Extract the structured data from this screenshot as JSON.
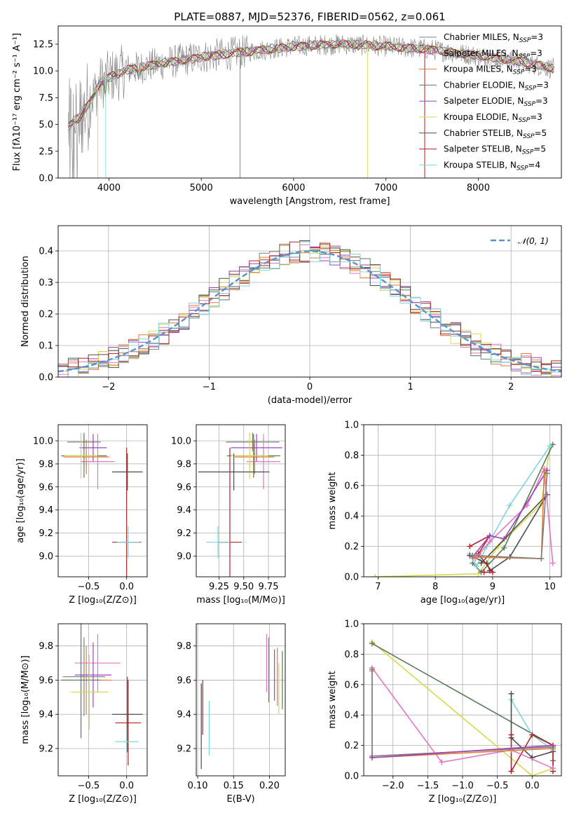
{
  "colors": {
    "Chabrier MILES": "#7f7f7f",
    "Salpeter MILES": "#e377c2",
    "Kroupa MILES": "#e07b39",
    "Chabrier ELODIE": "#5a7a5a",
    "Salpeter ELODIE": "#9c44b8",
    "Kroupa ELODIE": "#d7d94a",
    "Chabrier STELIB": "#4d4d4d",
    "Salpeter STELIB": "#b22222",
    "Kroupa STELIB": "#7fd6dc",
    "data": "#808080",
    "gauss": "#5b8fd6"
  },
  "chart_data": [
    {
      "id": "spectrum",
      "type": "line",
      "title": "PLATE=0887, MJD=52376, FIBERID=0562, z=0.061",
      "xlabel": "wavelength [Angstrom, rest frame]",
      "ylabel": "Flux [fλ10⁻¹⁷ erg cm⁻² s⁻¹ A⁻¹]",
      "xlim": [
        3450,
        8900
      ],
      "ylim": [
        0,
        14.2
      ],
      "xticks": [
        "4000",
        "5000",
        "6000",
        "7000",
        "8000"
      ],
      "yticks": [
        "0.0",
        "2.5",
        "5.0",
        "7.5",
        "10.0",
        "12.5"
      ],
      "legend": [
        "Chabrier MILES, N",
        "Salpeter MILES, N",
        "Kroupa MILES, N",
        "Chabrier ELODIE, N",
        "Salpeter ELODIE, N",
        "Kroupa ELODIE, N",
        "Chabrier STELIB, N",
        "Salpeter STELIB, N",
        "Kroupa STELIB, N"
      ],
      "legend_nssp": [
        "=3",
        "=3",
        "=3",
        "=3",
        "=3",
        "=3",
        "=5",
        "=5",
        "=4"
      ],
      "legend_sub": "SSP",
      "legend_loc": "right",
      "continuum": [
        [
          3550,
          4.6
        ],
        [
          3600,
          5.2
        ],
        [
          3700,
          5.8
        ],
        [
          3800,
          7.2
        ],
        [
          3900,
          8.8
        ],
        [
          4000,
          9.4
        ],
        [
          4200,
          10.1
        ],
        [
          4500,
          10.6
        ],
        [
          5000,
          11.3
        ],
        [
          5500,
          11.8
        ],
        [
          6000,
          12.3
        ],
        [
          6500,
          12.5
        ],
        [
          7000,
          12.3
        ],
        [
          7500,
          12.0
        ],
        [
          8000,
          11.4
        ],
        [
          8500,
          10.8
        ],
        [
          8820,
          10.2
        ]
      ]
    },
    {
      "id": "residuals",
      "type": "bar",
      "xlabel": "(data-model)/error",
      "ylabel": "Normed distribution",
      "xlim": [
        -2.5,
        2.5
      ],
      "ylim": [
        0,
        0.48
      ],
      "xticks": [
        "−2",
        "−1",
        "0",
        "1",
        "2"
      ],
      "yticks": [
        "0.0",
        "0.1",
        "0.2",
        "0.3",
        "0.4"
      ],
      "legend": "𝒩(0, 1)",
      "legend_loc": "upper right"
    },
    {
      "id": "age_vs_Z",
      "type": "scatter",
      "xlabel": "Z [log₁₀(Z/Z⊙)]",
      "ylabel": "age  [log₁₀(age/yr)]",
      "xlim": [
        -0.9,
        0.27
      ],
      "ylim": [
        8.82,
        10.14
      ],
      "xticks": [
        "−0.5",
        "0.0"
      ],
      "yticks": [
        "9.0",
        "9.2",
        "9.4",
        "9.6",
        "9.8",
        "10.0"
      ],
      "points": [
        {
          "model": "Chabrier MILES",
          "x": -0.56,
          "xerr": 0.22,
          "y": 9.99,
          "yerr": 0.08
        },
        {
          "model": "Salpeter MILES",
          "x": -0.38,
          "xerr": 0.22,
          "y": 9.82,
          "yerr": 0.24
        },
        {
          "model": "Kroupa MILES",
          "x": -0.53,
          "xerr": 0.3,
          "y": 9.86,
          "yerr": 0.15
        },
        {
          "model": "Chabrier ELODIE",
          "x": -0.56,
          "xerr": 0.3,
          "y": 9.87,
          "yerr": 0.19
        },
        {
          "model": "Salpeter ELODIE",
          "x": -0.44,
          "xerr": 0.18,
          "y": 9.94,
          "yerr": 0.12
        },
        {
          "model": "Kroupa ELODIE",
          "x": -0.6,
          "xerr": 0.22,
          "y": 9.87,
          "yerr": 0.2
        },
        {
          "model": "Chabrier STELIB",
          "x": 0.01,
          "xerr": 0.2,
          "y": 9.73,
          "yerr": 0.16
        },
        {
          "model": "Salpeter STELIB",
          "x": 0.0,
          "xerr": 0.19,
          "y": 9.12,
          "yerr": 0.82
        },
        {
          "model": "Kroupa STELIB",
          "x": 0.02,
          "xerr": 0.15,
          "y": 9.12,
          "yerr": 0.14
        }
      ]
    },
    {
      "id": "age_vs_mass",
      "type": "scatter",
      "xlabel": "mass [log₁₀(M/M⊙)]",
      "xlim": [
        9.02,
        9.92
      ],
      "ylim": [
        8.82,
        10.14
      ],
      "xticks": [
        "9.25",
        "9.50",
        "9.75"
      ],
      "yticks": [
        "9.0",
        "9.2",
        "9.4",
        "9.6",
        "9.8",
        "10.0"
      ],
      "points": [
        {
          "model": "Chabrier MILES",
          "x": 9.59,
          "xerr": 0.27,
          "y": 9.99,
          "yerr": 0.08
        },
        {
          "model": "Salpeter MILES",
          "x": 9.7,
          "xerr": 0.17,
          "y": 9.82,
          "yerr": 0.24
        },
        {
          "model": "Kroupa MILES",
          "x": 9.61,
          "xerr": 0.2,
          "y": 9.86,
          "yerr": 0.15
        },
        {
          "model": "Chabrier ELODIE",
          "x": 9.6,
          "xerr": 0.27,
          "y": 9.87,
          "yerr": 0.19
        },
        {
          "model": "Salpeter ELODIE",
          "x": 9.63,
          "xerr": 0.26,
          "y": 9.94,
          "yerr": 0.12
        },
        {
          "model": "Kroupa ELODIE",
          "x": 9.56,
          "xerr": 0.19,
          "y": 9.87,
          "yerr": 0.2
        },
        {
          "model": "Chabrier STELIB",
          "x": 9.4,
          "xerr": 0.36,
          "y": 9.73,
          "yerr": 0.16
        },
        {
          "model": "Salpeter STELIB",
          "x": 9.36,
          "xerr": 0.12,
          "y": 9.12,
          "yerr": 0.82
        },
        {
          "model": "Kroupa STELIB",
          "x": 9.24,
          "xerr": 0.12,
          "y": 9.12,
          "yerr": 0.14
        }
      ]
    },
    {
      "id": "mass_vs_Z",
      "type": "scatter",
      "xlabel": "Z [log₁₀(Z/Z⊙)]",
      "ylabel": "mass [log₁₀(M/M⊙)]",
      "xlim": [
        -0.9,
        0.27
      ],
      "ylim": [
        9.04,
        9.93
      ],
      "xticks": [
        "−0.5",
        "0.0"
      ],
      "yticks": [
        "9.2",
        "9.4",
        "9.6",
        "9.8"
      ],
      "points": [
        {
          "model": "Chabrier MILES",
          "x": -0.56,
          "xerr": 0.28,
          "y": 9.62,
          "yerr": 0.23
        },
        {
          "model": "Salpeter MILES",
          "x": -0.38,
          "xerr": 0.3,
          "y": 9.7,
          "yerr": 0.17
        },
        {
          "model": "Kroupa MILES",
          "x": -0.53,
          "xerr": 0.33,
          "y": 9.6,
          "yerr": 0.2
        },
        {
          "model": "Chabrier ELODIE",
          "x": -0.6,
          "xerr": 0.26,
          "y": 9.6,
          "yerr": 0.34
        },
        {
          "model": "Salpeter ELODIE",
          "x": -0.44,
          "xerr": 0.24,
          "y": 9.63,
          "yerr": 0.19
        },
        {
          "model": "Kroupa ELODIE",
          "x": -0.49,
          "xerr": 0.24,
          "y": 9.53,
          "yerr": 0.22
        },
        {
          "model": "Chabrier STELIB",
          "x": 0.01,
          "xerr": 0.2,
          "y": 9.4,
          "yerr": 0.22
        },
        {
          "model": "Salpeter STELIB",
          "x": 0.02,
          "xerr": 0.17,
          "y": 9.35,
          "yerr": 0.25
        },
        {
          "model": "Kroupa STELIB",
          "x": 0.0,
          "xerr": 0.15,
          "y": 9.24,
          "yerr": 0.07
        }
      ]
    },
    {
      "id": "mass_vs_ebv",
      "type": "scatter",
      "xlabel": "E(B-V)",
      "xlim": [
        0.098,
        0.222
      ],
      "ylim": [
        9.04,
        9.93
      ],
      "xticks": [
        "0.10",
        "0.15",
        "0.20"
      ],
      "yticks": [
        "9.2",
        "9.4",
        "9.6",
        "9.8"
      ],
      "points": [
        {
          "model": "Chabrier MILES",
          "x": 0.199,
          "y": 9.66,
          "yerr": 0.19
        },
        {
          "model": "Salpeter MILES",
          "x": 0.196,
          "y": 9.7,
          "yerr": 0.17
        },
        {
          "model": "Kroupa MILES",
          "x": 0.211,
          "y": 9.62,
          "yerr": 0.17
        },
        {
          "model": "Chabrier ELODIE",
          "x": 0.218,
          "y": 9.6,
          "yerr": 0.17
        },
        {
          "model": "Salpeter ELODIE",
          "x": 0.207,
          "y": 9.63,
          "yerr": 0.15
        },
        {
          "model": "Kroupa ELODIE",
          "x": 0.213,
          "y": 9.55,
          "yerr": 0.15
        },
        {
          "model": "Chabrier STELIB",
          "x": 0.105,
          "y": 9.33,
          "yerr": 0.25
        },
        {
          "model": "Salpeter STELIB",
          "x": 0.107,
          "y": 9.44,
          "yerr": 0.16
        },
        {
          "model": "Kroupa STELIB",
          "x": 0.116,
          "y": 9.32,
          "yerr": 0.16
        }
      ]
    },
    {
      "id": "weight_vs_age",
      "type": "line",
      "xlabel": "age  [log₁₀(age/yr)]",
      "ylabel": "mass weight",
      "xlim": [
        6.75,
        10.2
      ],
      "ylim": [
        0,
        1
      ],
      "xticks": [
        "7",
        "8",
        "9",
        "10"
      ],
      "yticks": [
        "0.0",
        "0.2",
        "0.4",
        "0.6",
        "0.8",
        "1.0"
      ],
      "series": [
        {
          "model": "Kroupa ELODIE",
          "x": [
            6.95,
            8.75,
            9.1,
            9.85,
            10.0
          ],
          "y": [
            0.0,
            0.02,
            0.2,
            0.48,
            0.86
          ]
        },
        {
          "model": "Chabrier ELODIE",
          "x": [
            8.65,
            8.8,
            9.2,
            10.05
          ],
          "y": [
            0.09,
            0.03,
            0.19,
            0.87
          ]
        },
        {
          "model": "Kroupa STELIB",
          "x": [
            8.6,
            8.65,
            8.72,
            8.9,
            9.3,
            10.0
          ],
          "y": [
            0.15,
            0.12,
            0.07,
            0.2,
            0.47,
            0.86
          ]
        },
        {
          "model": "Chabrier STELIB",
          "x": [
            8.6,
            8.9,
            8.95,
            9.3,
            9.95,
            8.8
          ],
          "y": [
            0.14,
            0.09,
            0.04,
            0.13,
            0.54,
            0.09
          ]
        },
        {
          "model": "Salpeter STELIB",
          "x": [
            8.6,
            8.95,
            8.75,
            9.0,
            8.85
          ],
          "y": [
            0.2,
            0.27,
            0.15,
            0.03,
            0.03
          ]
        },
        {
          "model": "Salpeter MILES",
          "x": [
            8.7,
            8.95,
            9.6,
            9.9,
            10.05
          ],
          "y": [
            0.12,
            0.23,
            0.47,
            0.71,
            0.09
          ]
        },
        {
          "model": "Salpeter ELODIE",
          "x": [
            8.65,
            8.95,
            9.2,
            9.95
          ],
          "y": [
            0.13,
            0.27,
            0.25,
            0.7
          ]
        },
        {
          "model": "Kroupa MILES",
          "x": [
            8.65,
            9.85,
            9.9
          ],
          "y": [
            0.13,
            0.12,
            0.69
          ]
        },
        {
          "model": "Chabrier MILES",
          "x": [
            8.65,
            9.85,
            9.95
          ],
          "y": [
            0.14,
            0.12,
            0.68
          ]
        }
      ]
    },
    {
      "id": "weight_vs_Z",
      "type": "line",
      "xlabel": "Z [log₁₀(Z/Z⊙)]",
      "ylabel": "mass weight",
      "xlim": [
        -2.42,
        0.42
      ],
      "ylim": [
        0,
        1
      ],
      "xticks": [
        "−2.0",
        "−1.5",
        "−1.0",
        "−0.5",
        "0.0"
      ],
      "yticks": [
        "0.0",
        "0.2",
        "0.4",
        "0.6",
        "0.8",
        "1.0"
      ],
      "series": [
        {
          "model": "Kroupa ELODIE",
          "x": [
            -2.3,
            0.0,
            0.3
          ],
          "y": [
            0.88,
            0.0,
            0.05
          ]
        },
        {
          "model": "Chabrier ELODIE",
          "x": [
            -2.3,
            0.3,
            0.3
          ],
          "y": [
            0.87,
            0.2,
            0.1
          ]
        },
        {
          "model": "Kroupa STELIB",
          "x": [
            -0.3,
            0.0,
            0.3,
            0.3
          ],
          "y": [
            0.5,
            0.27,
            0.17,
            0.03
          ]
        },
        {
          "model": "Chabrier STELIB",
          "x": [
            -0.3,
            -0.3,
            0.0,
            0.3
          ],
          "y": [
            0.54,
            0.25,
            0.12,
            0.16
          ]
        },
        {
          "model": "Salpeter STELIB",
          "x": [
            -0.3,
            -0.3,
            0.0,
            0.3,
            0.3
          ],
          "y": [
            0.27,
            0.03,
            0.27,
            0.2,
            0.03
          ]
        },
        {
          "model": "Salpeter MILES",
          "x": [
            -2.3,
            -1.3,
            -0.3,
            0.3
          ],
          "y": [
            0.71,
            0.09,
            0.17,
            0.05
          ]
        },
        {
          "model": "Kroupa MILES",
          "x": [
            -2.3,
            -2.3,
            0.3
          ],
          "y": [
            0.69,
            0.12,
            0.18
          ]
        },
        {
          "model": "Chabrier MILES",
          "x": [
            -2.3,
            -2.3,
            0.3
          ],
          "y": [
            0.7,
            0.13,
            0.19
          ]
        },
        {
          "model": "Salpeter ELODIE",
          "x": [
            -2.3,
            0.3
          ],
          "y": [
            0.12,
            0.2
          ]
        }
      ]
    }
  ]
}
